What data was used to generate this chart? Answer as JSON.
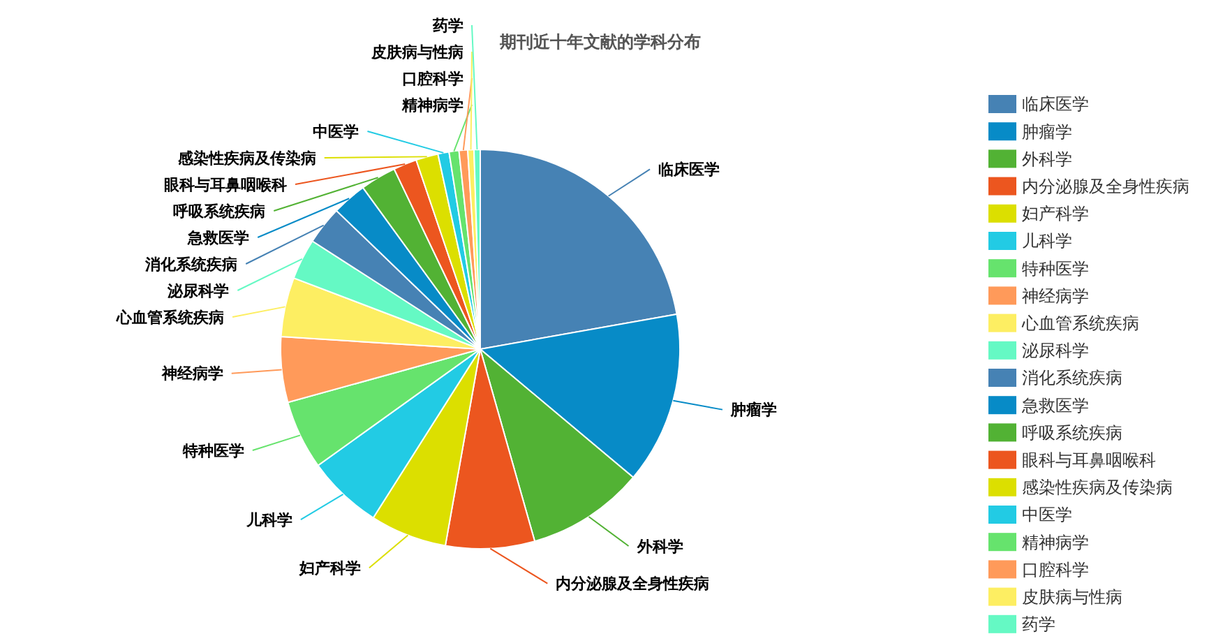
{
  "chart_data": {
    "type": "pie",
    "title": "期刊近十年文献的学科分布",
    "categories": [
      "临床医学",
      "肿瘤学",
      "外科学",
      "内分泌腺及全身性疾病",
      "妇产科学",
      "儿科学",
      "特种医学",
      "神经病学",
      "心血管系统疾病",
      "泌尿科学",
      "消化系统疾病",
      "急救医学",
      "呼吸系统疾病",
      "眼科与耳鼻咽喉科",
      "感染性疾病及传染病",
      "中医学",
      "精神病学",
      "口腔科学",
      "皮肤病与性病",
      "药学"
    ],
    "values": [
      22.2,
      13.9,
      9.5,
      7.2,
      6.2,
      6.1,
      5.6,
      5.3,
      4.8,
      3.3,
      3.1,
      2.8,
      2.9,
      1.9,
      1.8,
      0.9,
      0.8,
      0.7,
      0.5,
      0.5
    ],
    "colors": [
      "#4682b4",
      "#078bc7",
      "#52b234",
      "#ec561f",
      "#dcdf00",
      "#22cbe4",
      "#66e36d",
      "#ff9a5a",
      "#fdee62",
      "#65f9c4",
      "#4682b4",
      "#078bc7",
      "#52b234",
      "#ec561f",
      "#dcdf00",
      "#22cbe4",
      "#66e36d",
      "#ff9a5a",
      "#fdee62",
      "#65f9c4"
    ],
    "legend": "right"
  }
}
